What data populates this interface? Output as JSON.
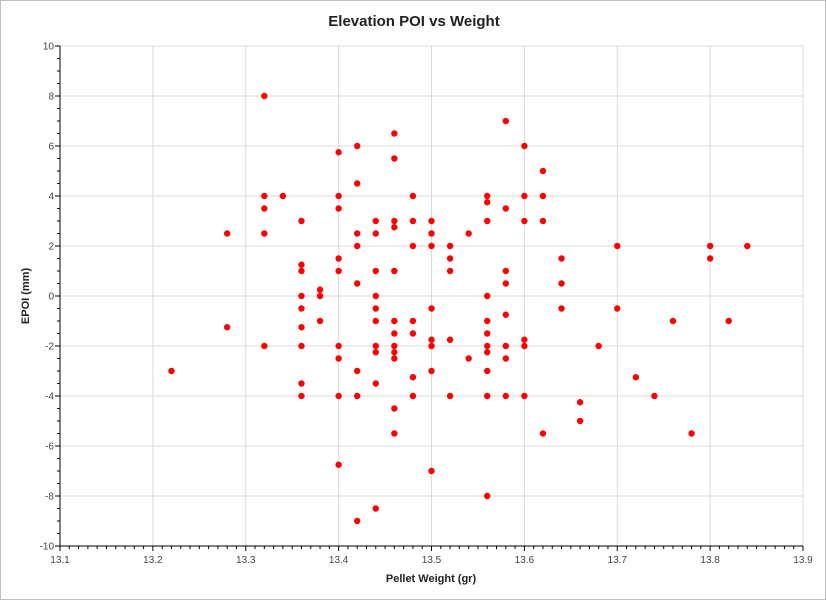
{
  "chart_data": {
    "type": "scatter",
    "title": "Elevation POI vs Weight",
    "xlabel": "Pellet Weight (gr)",
    "ylabel": "EPOI (mm)",
    "xlim": [
      13.1,
      13.9
    ],
    "ylim": [
      -10,
      10
    ],
    "xticks": [
      "13.1",
      "13.2",
      "13.3",
      "13.4",
      "13.5",
      "13.6",
      "13.7",
      "13.8",
      "13.9"
    ],
    "yticks": [
      "-10",
      "-8",
      "-6",
      "-4",
      "-2",
      "0",
      "2",
      "4",
      "6",
      "8",
      "10"
    ],
    "grid": true,
    "legend": "none",
    "marker_color": "#ff0000",
    "points": [
      [
        13.22,
        -3
      ],
      [
        13.28,
        2.5
      ],
      [
        13.28,
        -1.25
      ],
      [
        13.32,
        8
      ],
      [
        13.32,
        4
      ],
      [
        13.32,
        3.5
      ],
      [
        13.32,
        2.5
      ],
      [
        13.32,
        -2
      ],
      [
        13.34,
        4
      ],
      [
        13.36,
        3
      ],
      [
        13.36,
        1.25
      ],
      [
        13.36,
        1
      ],
      [
        13.36,
        0
      ],
      [
        13.36,
        -0.5
      ],
      [
        13.36,
        -1.25
      ],
      [
        13.36,
        -2
      ],
      [
        13.36,
        -3.5
      ],
      [
        13.36,
        -4
      ],
      [
        13.38,
        0.25
      ],
      [
        13.38,
        0
      ],
      [
        13.38,
        -1
      ],
      [
        13.4,
        5.75
      ],
      [
        13.4,
        4
      ],
      [
        13.4,
        3.5
      ],
      [
        13.4,
        1.5
      ],
      [
        13.4,
        1
      ],
      [
        13.4,
        -2
      ],
      [
        13.4,
        -2.5
      ],
      [
        13.4,
        -4
      ],
      [
        13.4,
        -6.75
      ],
      [
        13.42,
        6
      ],
      [
        13.42,
        4.5
      ],
      [
        13.42,
        2.5
      ],
      [
        13.42,
        2
      ],
      [
        13.42,
        0.5
      ],
      [
        13.42,
        -3
      ],
      [
        13.42,
        -4
      ],
      [
        13.42,
        -9
      ],
      [
        13.44,
        3
      ],
      [
        13.44,
        2.5
      ],
      [
        13.44,
        1
      ],
      [
        13.44,
        0
      ],
      [
        13.44,
        -0.5
      ],
      [
        13.44,
        -1
      ],
      [
        13.44,
        -2
      ],
      [
        13.44,
        -2.25
      ],
      [
        13.44,
        -3.5
      ],
      [
        13.44,
        -8.5
      ],
      [
        13.46,
        6.5
      ],
      [
        13.46,
        5.5
      ],
      [
        13.46,
        3
      ],
      [
        13.46,
        2.75
      ],
      [
        13.46,
        1
      ],
      [
        13.46,
        -1
      ],
      [
        13.46,
        -1.5
      ],
      [
        13.46,
        -2
      ],
      [
        13.46,
        -2.25
      ],
      [
        13.46,
        -2.5
      ],
      [
        13.46,
        -4.5
      ],
      [
        13.46,
        -5.5
      ],
      [
        13.48,
        4
      ],
      [
        13.48,
        3
      ],
      [
        13.48,
        2
      ],
      [
        13.48,
        -1
      ],
      [
        13.48,
        -1.5
      ],
      [
        13.48,
        -3.25
      ],
      [
        13.48,
        -4
      ],
      [
        13.5,
        3
      ],
      [
        13.5,
        2.5
      ],
      [
        13.5,
        2
      ],
      [
        13.5,
        -0.5
      ],
      [
        13.5,
        -1.75
      ],
      [
        13.5,
        -2
      ],
      [
        13.5,
        -3
      ],
      [
        13.5,
        -7
      ],
      [
        13.52,
        2
      ],
      [
        13.52,
        1.5
      ],
      [
        13.52,
        1
      ],
      [
        13.52,
        -1.75
      ],
      [
        13.52,
        -4
      ],
      [
        13.54,
        2.5
      ],
      [
        13.54,
        -2.5
      ],
      [
        13.56,
        4
      ],
      [
        13.56,
        3.75
      ],
      [
        13.56,
        3
      ],
      [
        13.56,
        0
      ],
      [
        13.56,
        -1
      ],
      [
        13.56,
        -1.5
      ],
      [
        13.56,
        -2
      ],
      [
        13.56,
        -2.25
      ],
      [
        13.56,
        -3
      ],
      [
        13.56,
        -4
      ],
      [
        13.56,
        -8
      ],
      [
        13.58,
        7
      ],
      [
        13.58,
        3.5
      ],
      [
        13.58,
        1
      ],
      [
        13.58,
        0.5
      ],
      [
        13.58,
        -0.75
      ],
      [
        13.58,
        -2
      ],
      [
        13.58,
        -2.5
      ],
      [
        13.58,
        -4
      ],
      [
        13.6,
        6
      ],
      [
        13.6,
        4
      ],
      [
        13.6,
        3
      ],
      [
        13.6,
        -1.75
      ],
      [
        13.6,
        -2
      ],
      [
        13.6,
        -4
      ],
      [
        13.62,
        5
      ],
      [
        13.62,
        4
      ],
      [
        13.62,
        3
      ],
      [
        13.62,
        -5.5
      ],
      [
        13.64,
        1.5
      ],
      [
        13.64,
        0.5
      ],
      [
        13.64,
        -0.5
      ],
      [
        13.66,
        -4.25
      ],
      [
        13.66,
        -5
      ],
      [
        13.68,
        -2
      ],
      [
        13.7,
        2
      ],
      [
        13.7,
        -0.5
      ],
      [
        13.72,
        -3.25
      ],
      [
        13.74,
        -4
      ],
      [
        13.76,
        -1
      ],
      [
        13.78,
        -5.5
      ],
      [
        13.8,
        2
      ],
      [
        13.8,
        1.5
      ],
      [
        13.82,
        -1
      ],
      [
        13.84,
        2
      ]
    ]
  }
}
